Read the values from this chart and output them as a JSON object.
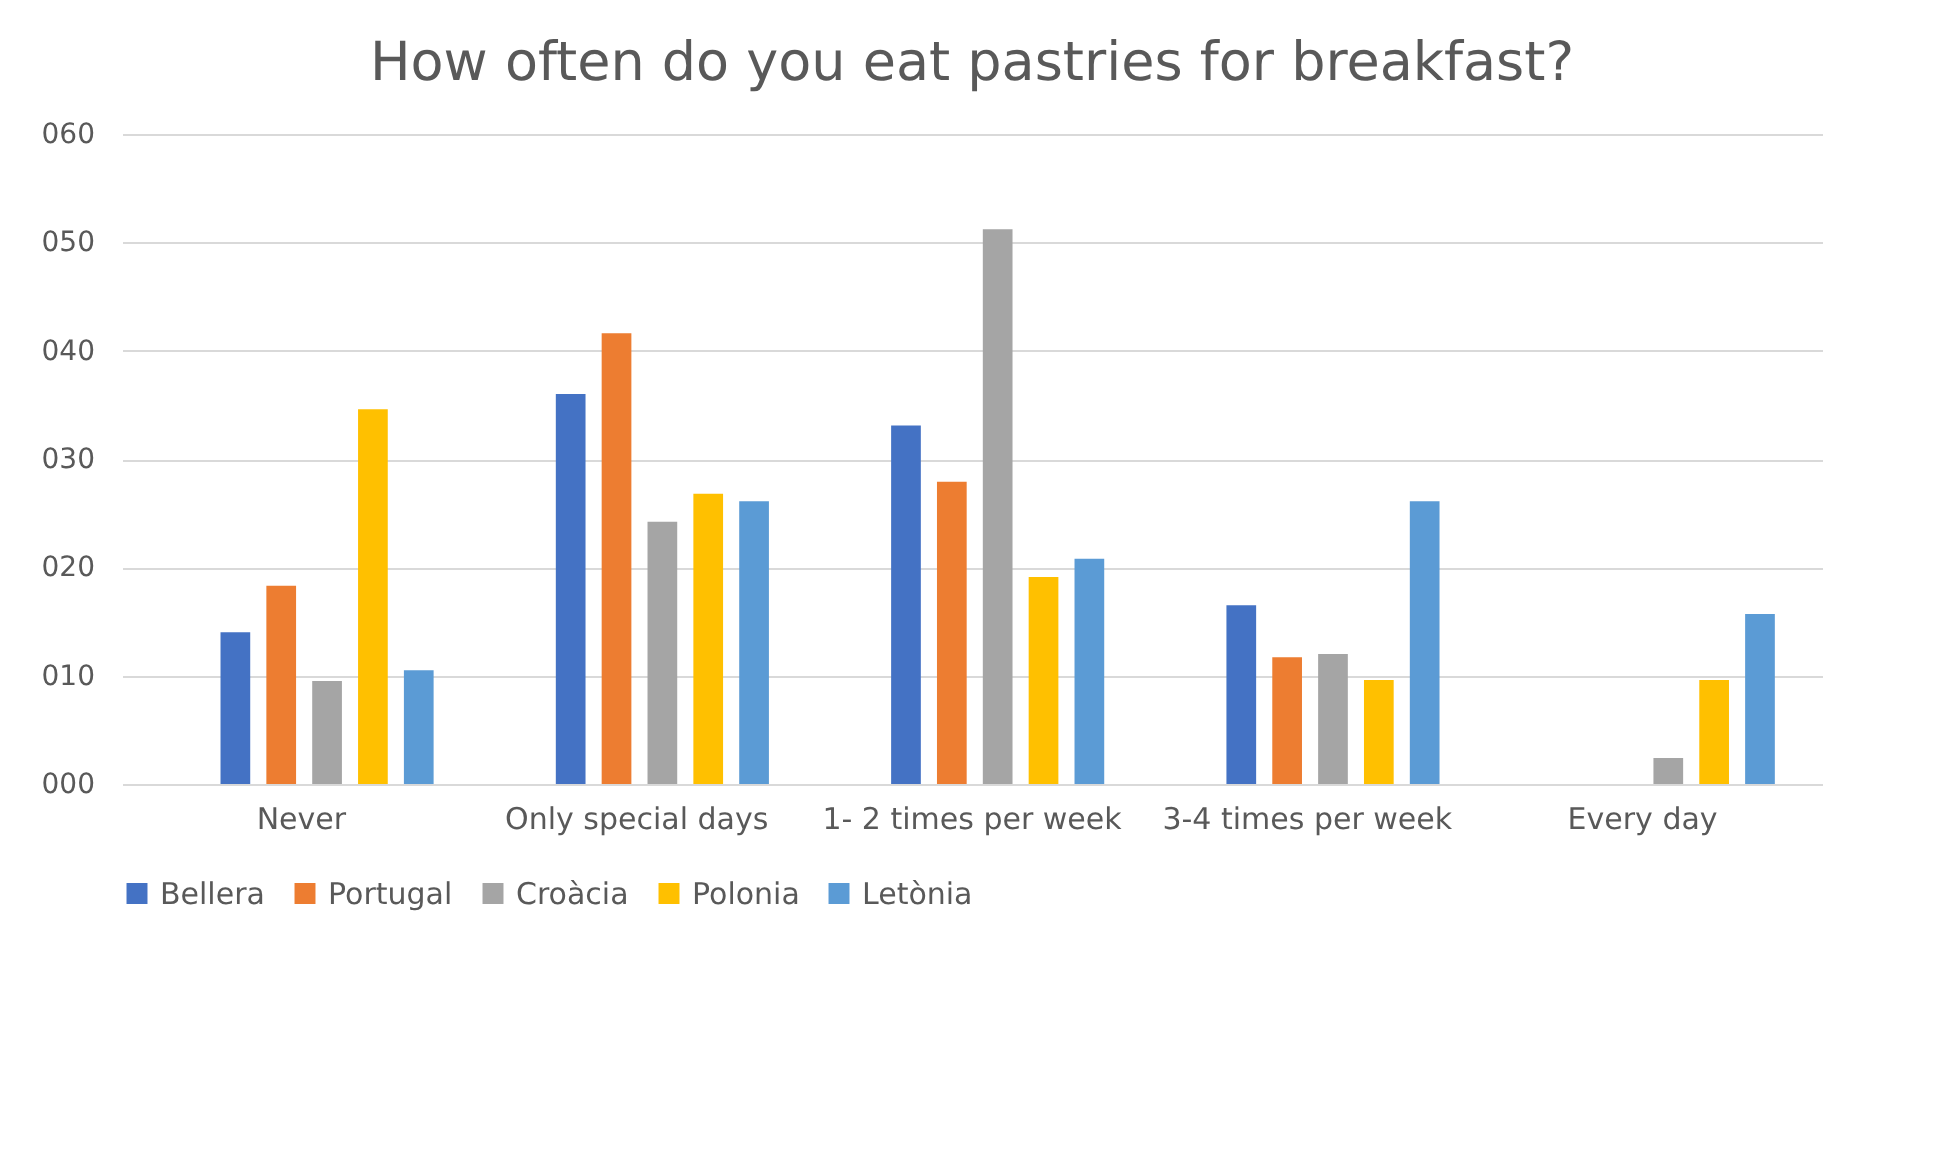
{
  "chart_data": {
    "type": "bar",
    "title": "How often do you eat pastries for breakfast?",
    "categories": [
      "Never",
      "Only special days",
      "1- 2 times per week",
      "3-4 times per week",
      "Every day"
    ],
    "series": [
      {
        "name": "Bellera",
        "color": "#4472c4",
        "values": [
          14.0,
          36.0,
          33.1,
          16.5,
          0
        ]
      },
      {
        "name": "Portugal",
        "color": "#ed7d31",
        "values": [
          18.3,
          41.6,
          27.9,
          11.7,
          0
        ]
      },
      {
        "name": "Croàcia",
        "color": "#a5a5a5",
        "values": [
          9.5,
          24.2,
          51.2,
          12.0,
          2.4
        ]
      },
      {
        "name": "Polonia",
        "color": "#ffc000",
        "values": [
          34.6,
          26.8,
          19.1,
          9.6,
          9.6
        ]
      },
      {
        "name": "Letònia",
        "color": "#5b9bd5",
        "values": [
          10.5,
          26.1,
          20.8,
          26.1,
          15.7
        ]
      }
    ],
    "ylim": [
      0,
      60
    ],
    "yticks": [
      {
        "value": 0,
        "label": "000"
      },
      {
        "value": 10,
        "label": "010"
      },
      {
        "value": 20,
        "label": "020"
      },
      {
        "value": 30,
        "label": "030"
      },
      {
        "value": 40,
        "label": "040"
      },
      {
        "value": 50,
        "label": "050"
      },
      {
        "value": 60,
        "label": "060"
      }
    ],
    "grid": "y",
    "legend": "bottom"
  }
}
